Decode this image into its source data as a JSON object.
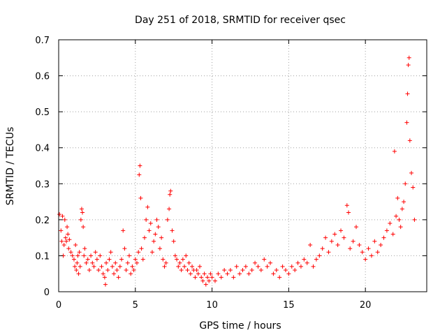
{
  "chart_data": {
    "type": "scatter",
    "title": "Day 251 of 2018, SRMTID for receiver qsec",
    "xlabel": "GPS time / hours",
    "ylabel": "SRMTID / TECUs",
    "xlim": [
      0,
      24
    ],
    "ylim": [
      0,
      0.7
    ],
    "x_ticks": [
      0,
      5,
      10,
      15,
      20
    ],
    "x_tick_labels": [
      "0",
      "5",
      "10",
      "15",
      "20"
    ],
    "y_ticks": [
      0,
      0.1,
      0.2,
      0.3,
      0.4,
      0.5,
      0.6,
      0.7
    ],
    "y_tick_labels": [
      "0",
      "0.1",
      "0.2",
      "0.3",
      "0.4",
      "0.5",
      "0.6",
      "0.7"
    ],
    "grid": true,
    "marker": "plus",
    "series": [
      {
        "name": "SRMTID",
        "color": "#ff0000",
        "points": [
          [
            0.05,
            0.215
          ],
          [
            0.15,
            0.17
          ],
          [
            0.2,
            0.14
          ],
          [
            0.25,
            0.21
          ],
          [
            0.3,
            0.1
          ],
          [
            0.35,
            0.13
          ],
          [
            0.4,
            0.2
          ],
          [
            0.45,
            0.15
          ],
          [
            0.5,
            0.14
          ],
          [
            0.55,
            0.18
          ],
          [
            0.6,
            0.16
          ],
          [
            0.65,
            0.12
          ],
          [
            0.7,
            0.145
          ],
          [
            0.8,
            0.11
          ],
          [
            0.9,
            0.1
          ],
          [
            1.0,
            0.09
          ],
          [
            1.05,
            0.07
          ],
          [
            1.1,
            0.13
          ],
          [
            1.15,
            0.06
          ],
          [
            1.2,
            0.08
          ],
          [
            1.25,
            0.1
          ],
          [
            1.3,
            0.05
          ],
          [
            1.35,
            0.11
          ],
          [
            1.4,
            0.07
          ],
          [
            1.45,
            0.2
          ],
          [
            1.5,
            0.23
          ],
          [
            1.55,
            0.22
          ],
          [
            1.6,
            0.18
          ],
          [
            1.65,
            0.1
          ],
          [
            1.7,
            0.12
          ],
          [
            1.8,
            0.08
          ],
          [
            1.9,
            0.09
          ],
          [
            2.0,
            0.06
          ],
          [
            2.1,
            0.1
          ],
          [
            2.2,
            0.08
          ],
          [
            2.3,
            0.07
          ],
          [
            2.4,
            0.11
          ],
          [
            2.5,
            0.09
          ],
          [
            2.6,
            0.06
          ],
          [
            2.7,
            0.1
          ],
          [
            2.8,
            0.07
          ],
          [
            2.9,
            0.05
          ],
          [
            3.0,
            0.04
          ],
          [
            3.05,
            0.02
          ],
          [
            3.1,
            0.08
          ],
          [
            3.2,
            0.06
          ],
          [
            3.3,
            0.09
          ],
          [
            3.4,
            0.11
          ],
          [
            3.5,
            0.07
          ],
          [
            3.6,
            0.05
          ],
          [
            3.7,
            0.08
          ],
          [
            3.8,
            0.06
          ],
          [
            3.9,
            0.04
          ],
          [
            4.0,
            0.07
          ],
          [
            4.1,
            0.09
          ],
          [
            4.2,
            0.17
          ],
          [
            4.3,
            0.12
          ],
          [
            4.4,
            0.06
          ],
          [
            4.5,
            0.08
          ],
          [
            4.6,
            0.1
          ],
          [
            4.7,
            0.05
          ],
          [
            4.8,
            0.07
          ],
          [
            4.9,
            0.06
          ],
          [
            5.0,
            0.09
          ],
          [
            5.1,
            0.08
          ],
          [
            5.2,
            0.11
          ],
          [
            5.25,
            0.325
          ],
          [
            5.3,
            0.35
          ],
          [
            5.35,
            0.26
          ],
          [
            5.4,
            0.12
          ],
          [
            5.5,
            0.09
          ],
          [
            5.6,
            0.15
          ],
          [
            5.7,
            0.2
          ],
          [
            5.8,
            0.235
          ],
          [
            5.9,
            0.17
          ],
          [
            6.0,
            0.19
          ],
          [
            6.1,
            0.11
          ],
          [
            6.2,
            0.14
          ],
          [
            6.3,
            0.16
          ],
          [
            6.4,
            0.2
          ],
          [
            6.5,
            0.18
          ],
          [
            6.6,
            0.12
          ],
          [
            6.7,
            0.15
          ],
          [
            6.8,
            0.09
          ],
          [
            6.9,
            0.07
          ],
          [
            7.0,
            0.08
          ],
          [
            7.1,
            0.2
          ],
          [
            7.2,
            0.23
          ],
          [
            7.25,
            0.27
          ],
          [
            7.3,
            0.28
          ],
          [
            7.4,
            0.17
          ],
          [
            7.5,
            0.14
          ],
          [
            7.6,
            0.1
          ],
          [
            7.7,
            0.09
          ],
          [
            7.8,
            0.07
          ],
          [
            7.9,
            0.08
          ],
          [
            8.0,
            0.06
          ],
          [
            8.1,
            0.09
          ],
          [
            8.2,
            0.07
          ],
          [
            8.3,
            0.1
          ],
          [
            8.4,
            0.06
          ],
          [
            8.5,
            0.08
          ],
          [
            8.6,
            0.05
          ],
          [
            8.7,
            0.07
          ],
          [
            8.8,
            0.06
          ],
          [
            8.9,
            0.04
          ],
          [
            9.0,
            0.06
          ],
          [
            9.1,
            0.05
          ],
          [
            9.2,
            0.07
          ],
          [
            9.3,
            0.04
          ],
          [
            9.4,
            0.03
          ],
          [
            9.5,
            0.05
          ],
          [
            9.6,
            0.02
          ],
          [
            9.7,
            0.04
          ],
          [
            9.8,
            0.03
          ],
          [
            9.9,
            0.05
          ],
          [
            10.0,
            0.04
          ],
          [
            10.2,
            0.03
          ],
          [
            10.4,
            0.05
          ],
          [
            10.6,
            0.04
          ],
          [
            10.8,
            0.06
          ],
          [
            11.0,
            0.05
          ],
          [
            11.2,
            0.06
          ],
          [
            11.4,
            0.04
          ],
          [
            11.6,
            0.07
          ],
          [
            11.8,
            0.05
          ],
          [
            12.0,
            0.06
          ],
          [
            12.2,
            0.07
          ],
          [
            12.4,
            0.05
          ],
          [
            12.6,
            0.06
          ],
          [
            12.8,
            0.08
          ],
          [
            13.0,
            0.07
          ],
          [
            13.2,
            0.06
          ],
          [
            13.4,
            0.09
          ],
          [
            13.6,
            0.07
          ],
          [
            13.8,
            0.08
          ],
          [
            14.0,
            0.05
          ],
          [
            14.2,
            0.06
          ],
          [
            14.4,
            0.04
          ],
          [
            14.6,
            0.07
          ],
          [
            14.8,
            0.06
          ],
          [
            15.0,
            0.05
          ],
          [
            15.2,
            0.07
          ],
          [
            15.4,
            0.06
          ],
          [
            15.6,
            0.08
          ],
          [
            15.8,
            0.07
          ],
          [
            16.0,
            0.09
          ],
          [
            16.2,
            0.08
          ],
          [
            16.4,
            0.13
          ],
          [
            16.6,
            0.07
          ],
          [
            16.8,
            0.09
          ],
          [
            17.0,
            0.1
          ],
          [
            17.2,
            0.12
          ],
          [
            17.4,
            0.15
          ],
          [
            17.6,
            0.11
          ],
          [
            17.8,
            0.14
          ],
          [
            18.0,
            0.16
          ],
          [
            18.2,
            0.13
          ],
          [
            18.4,
            0.17
          ],
          [
            18.6,
            0.15
          ],
          [
            18.8,
            0.24
          ],
          [
            18.9,
            0.22
          ],
          [
            19.0,
            0.12
          ],
          [
            19.2,
            0.14
          ],
          [
            19.4,
            0.18
          ],
          [
            19.6,
            0.13
          ],
          [
            19.8,
            0.11
          ],
          [
            20.0,
            0.09
          ],
          [
            20.2,
            0.12
          ],
          [
            20.4,
            0.1
          ],
          [
            20.6,
            0.14
          ],
          [
            20.8,
            0.11
          ],
          [
            21.0,
            0.13
          ],
          [
            21.2,
            0.15
          ],
          [
            21.4,
            0.17
          ],
          [
            21.6,
            0.19
          ],
          [
            21.8,
            0.16
          ],
          [
            21.9,
            0.39
          ],
          [
            22.0,
            0.21
          ],
          [
            22.1,
            0.26
          ],
          [
            22.2,
            0.2
          ],
          [
            22.3,
            0.18
          ],
          [
            22.4,
            0.23
          ],
          [
            22.5,
            0.25
          ],
          [
            22.6,
            0.3
          ],
          [
            22.7,
            0.47
          ],
          [
            22.75,
            0.55
          ],
          [
            22.8,
            0.63
          ],
          [
            22.85,
            0.65
          ],
          [
            22.9,
            0.42
          ],
          [
            23.0,
            0.33
          ],
          [
            23.1,
            0.29
          ],
          [
            23.2,
            0.2
          ]
        ]
      }
    ]
  }
}
